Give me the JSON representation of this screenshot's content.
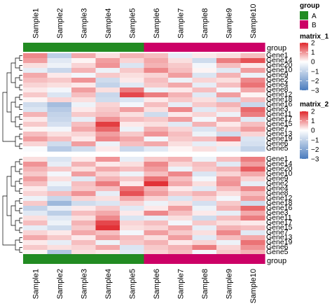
{
  "chart_data": {
    "type": "heatmap",
    "samples": [
      "Sample1",
      "Sample2",
      "Sample3",
      "Sample4",
      "Sample5",
      "Sample6",
      "Sample7",
      "Sample8",
      "Sample9",
      "Sample10"
    ],
    "group_label": "group",
    "group_assignment": [
      "A",
      "A",
      "A",
      "A",
      "A",
      "B",
      "B",
      "B",
      "B",
      "B"
    ],
    "group_legend": {
      "title": "group",
      "items": [
        {
          "name": "A",
          "color": "#228b22"
        },
        {
          "name": "B",
          "color": "#cc0066"
        }
      ]
    },
    "color_scale": {
      "low": "#4a7bbd",
      "mid": "#ffffff",
      "high": "#e0272c",
      "breaks": [
        -3,
        0,
        2
      ]
    },
    "heatmaps": [
      {
        "name": "matrix_1",
        "legend_ticks": [
          2,
          1,
          0,
          -1,
          -2,
          -3
        ],
        "rows": [
          "Gene1",
          "Gene14",
          "Gene20",
          "Gene10",
          "Gene9",
          "Gene2",
          "Gene4",
          "Gene8",
          "Gene12",
          "Gene18",
          "Gene16",
          "Gene3",
          "Gene11",
          "Gene17",
          "Gene15",
          "Gene7",
          "Gene13",
          "Gene19",
          "Gene6",
          "Gene5"
        ],
        "values": [
          [
            1.1,
            -1.1,
            0.8,
            0.3,
            0.7,
            0.6,
            -0.4,
            0.2,
            0.3,
            0.6
          ],
          [
            0.9,
            -0.5,
            0.1,
            0.9,
            0.4,
            0.8,
            0.3,
            -0.8,
            1.2,
            1.6
          ],
          [
            0.3,
            -0.3,
            0.4,
            1.0,
            -0.6,
            0.7,
            0.5,
            -0.2,
            0.6,
            0.2
          ],
          [
            -0.4,
            -0.9,
            0.7,
            -0.3,
            0.5,
            1.1,
            0.6,
            0.1,
            -0.5,
            0.9
          ],
          [
            0.8,
            0.2,
            -0.2,
            0.5,
            0.3,
            0.4,
            0.9,
            -0.6,
            0.7,
            -0.3
          ],
          [
            0.6,
            0.5,
            1.0,
            -0.8,
            0.2,
            0.6,
            -0.3,
            0.4,
            0.3,
            1.1
          ],
          [
            0.4,
            0.3,
            0.2,
            -1.0,
            -0.5,
            0.5,
            0.8,
            -0.4,
            0.6,
            1.3
          ],
          [
            0.2,
            -0.2,
            0.9,
            0.3,
            1.2,
            -0.3,
            0.2,
            0.6,
            -0.2,
            0.8
          ],
          [
            0.5,
            -0.6,
            0.6,
            -0.9,
            1.7,
            1.2,
            0.7,
            -0.5,
            0.9,
            0.1
          ],
          [
            0.1,
            0.4,
            0.3,
            -0.8,
            -0.6,
            0.2,
            0.5,
            0.3,
            -0.7,
            0.6
          ],
          [
            -0.8,
            -1.5,
            -0.3,
            0.4,
            -0.2,
            0.6,
            -0.4,
            0.5,
            0.7,
            -0.9
          ],
          [
            -0.6,
            -1.2,
            0.2,
            0.5,
            0.9,
            0.3,
            1.1,
            -0.5,
            0.4,
            1.4
          ],
          [
            0.7,
            -1.0,
            0.5,
            0.6,
            0.3,
            -0.8,
            0.2,
            0.4,
            -0.3,
            1.2
          ],
          [
            0.2,
            -0.9,
            -0.4,
            1.0,
            0.6,
            0.5,
            0.9,
            -0.2,
            0.8,
            -0.5
          ],
          [
            0.5,
            -0.7,
            0.6,
            1.8,
            0.2,
            0.3,
            -0.5,
            0.7,
            0.2,
            0.6
          ],
          [
            0.1,
            -0.2,
            0.8,
            1.4,
            -0.3,
            0.7,
            0.4,
            -0.6,
            0.5,
            0.9
          ],
          [
            0.6,
            0.3,
            0.4,
            0.9,
            0.5,
            1.0,
            0.6,
            -0.3,
            -0.8,
            0.4
          ],
          [
            0.9,
            0.6,
            0.2,
            1.1,
            0.8,
            -0.2,
            0.5,
            0.6,
            1.3,
            -0.6
          ],
          [
            0.4,
            -0.8,
            0.9,
            -0.3,
            0.6,
            0.8,
            0.3,
            -0.4,
            0.2,
            -0.7
          ],
          [
            -0.1,
            -1.2,
            -0.8,
            0.2,
            -0.9,
            -0.5,
            0.1,
            0.3,
            -0.4,
            -1.0
          ]
        ]
      },
      {
        "name": "matrix_2",
        "legend_ticks": [
          2,
          1,
          0,
          -1,
          -2,
          -3
        ],
        "rows": [
          "Gene1",
          "Gene14",
          "Gene20",
          "Gene10",
          "Gene9",
          "Gene2",
          "Gene4",
          "Gene8",
          "Gene12",
          "Gene18",
          "Gene16",
          "Gene3",
          "Gene11",
          "Gene17",
          "Gene15",
          "Gene7",
          "Gene13",
          "Gene19",
          "Gene6",
          "Gene5"
        ],
        "values": [
          [
            0.3,
            -0.6,
            0.2,
            1.0,
            -0.4,
            0.5,
            0.7,
            -0.3,
            0.6,
            1.2
          ],
          [
            1.0,
            -0.4,
            0.7,
            0.2,
            0.3,
            1.1,
            0.4,
            0.6,
            -0.5,
            0.9
          ],
          [
            0.7,
            0.5,
            0.3,
            0.8,
            0.6,
            0.9,
            -0.3,
            0.5,
            0.7,
            1.5
          ],
          [
            0.5,
            -0.2,
            0.9,
            0.4,
            -0.3,
            0.6,
            1.1,
            -0.6,
            0.4,
            0.8
          ],
          [
            0.9,
            0.3,
            -0.5,
            0.7,
            0.5,
            1.3,
            0.6,
            -0.2,
            0.9,
            0.4
          ],
          [
            0.6,
            -0.3,
            0.6,
            1.2,
            0.2,
            1.9,
            0.8,
            0.3,
            1.0,
            -0.4
          ],
          [
            0.2,
            -0.7,
            0.5,
            0.6,
            1.3,
            0.7,
            0.2,
            -0.5,
            0.6,
            1.1
          ],
          [
            0.4,
            0.6,
            1.0,
            -0.4,
            1.6,
            0.9,
            0.5,
            0.7,
            0.3,
            0.6
          ],
          [
            -0.3,
            -0.9,
            0.4,
            0.3,
            0.8,
            0.4,
            -0.6,
            0.4,
            -0.2,
            0.9
          ],
          [
            0.5,
            -1.6,
            -0.8,
            -0.6,
            0.4,
            -0.3,
            0.3,
            -0.7,
            0.5,
            -0.8
          ],
          [
            -1.0,
            -0.4,
            0.2,
            0.5,
            -0.5,
            0.2,
            0.9,
            -0.3,
            0.7,
            1.4
          ],
          [
            -0.5,
            -1.1,
            0.6,
            0.8,
            0.2,
            1.1,
            0.6,
            0.2,
            -0.4,
            0.8
          ],
          [
            0.3,
            -0.5,
            0.3,
            1.1,
            -0.6,
            -0.4,
            0.3,
            -0.8,
            0.6,
            1.2
          ],
          [
            0.6,
            -0.3,
            0.7,
            1.7,
            0.4,
            0.6,
            -0.2,
            0.5,
            0.3,
            0.2
          ],
          [
            -0.4,
            -0.8,
            0.5,
            1.9,
            0.3,
            0.4,
            0.8,
            -0.4,
            0.7,
            0.6
          ],
          [
            0.4,
            0.2,
            0.8,
            0.6,
            -0.2,
            0.9,
            0.5,
            0.3,
            1.1,
            -0.5
          ],
          [
            0.8,
            0.5,
            0.2,
            0.9,
            0.6,
            0.3,
            0.9,
            -0.5,
            0.6,
            0.8
          ],
          [
            0.2,
            -0.4,
            0.6,
            -0.3,
            0.5,
            0.7,
            0.2,
            0.4,
            -0.3,
            1.3
          ],
          [
            0.5,
            0.3,
            0.4,
            0.8,
            -0.6,
            0.5,
            0.7,
            1.2,
            0.4,
            1.0
          ],
          [
            0.1,
            -1.3,
            0.3,
            0.2,
            -0.5,
            0.4,
            0.6,
            -0.2,
            0.5,
            0.7
          ]
        ]
      }
    ]
  }
}
